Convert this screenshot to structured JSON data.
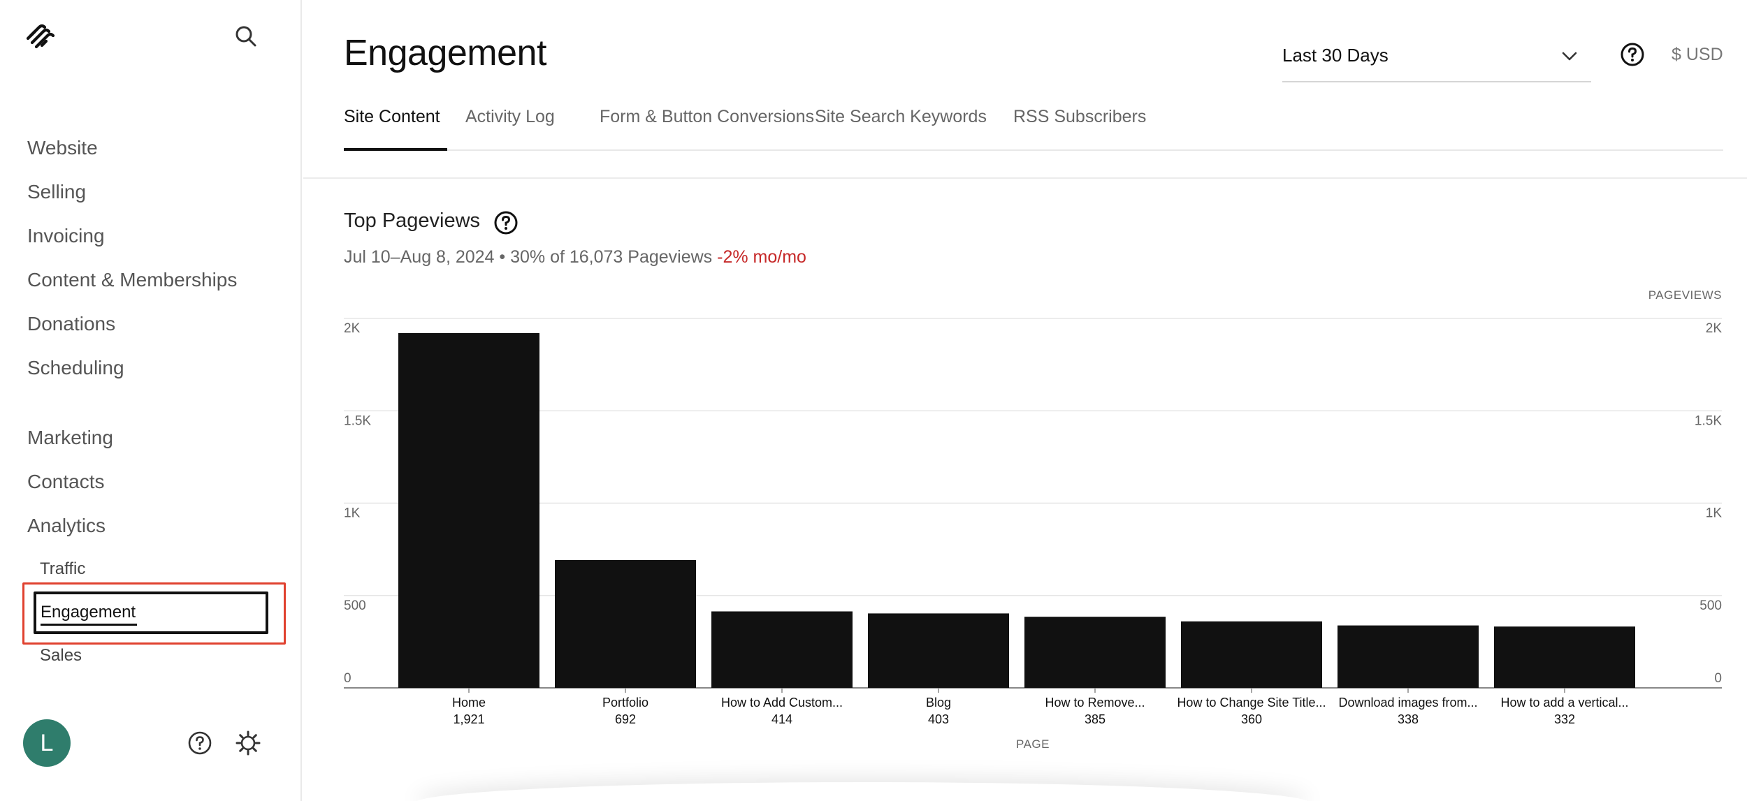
{
  "sidebar": {
    "logo_icon": "squarespace-logo-icon",
    "search_icon": "search-icon",
    "nav_primary": [
      "Website",
      "Selling",
      "Invoicing",
      "Content & Memberships",
      "Donations",
      "Scheduling"
    ],
    "nav_secondary": [
      "Marketing",
      "Contacts",
      "Analytics"
    ],
    "analytics_sub": {
      "traffic": "Traffic",
      "engagement": "Engagement",
      "sales": "Sales"
    },
    "avatar_initial": "L",
    "help_icon": "help-circle-icon",
    "settings_icon": "gear-icon"
  },
  "header": {
    "title": "Engagement",
    "date_range": "Last 30 Days",
    "currency": "$ USD"
  },
  "tabs": [
    "Site Content",
    "Activity Log",
    "Form & Button Conversions",
    "Site Search Keywords",
    "RSS Subscribers"
  ],
  "section": {
    "title": "Top Pageviews",
    "subtitle": "Jul 10–Aug 8, 2024 • 30% of 16,073 Pageviews",
    "delta": "-2% mo/mo"
  },
  "chart_data": {
    "type": "bar",
    "categories": [
      "Home",
      "Portfolio",
      "How to Add Custom...",
      "Blog",
      "How to Remove...",
      "How to Change Site Title...",
      "Download images from...",
      "How to add a vertical..."
    ],
    "values": [
      1921,
      692,
      414,
      403,
      385,
      360,
      338,
      332
    ],
    "value_labels": [
      "1,921",
      "692",
      "414",
      "403",
      "385",
      "360",
      "338",
      "332"
    ],
    "xlabel": "PAGE",
    "ylabel": "PAGEVIEWS",
    "ylim": [
      0,
      2000
    ],
    "ticks": [
      0,
      500,
      1000,
      1500,
      2000
    ],
    "tick_labels": [
      "0",
      "500",
      "1K",
      "1.5K",
      "2K"
    ],
    "grid": true,
    "bar_color": "#111111"
  },
  "colors": {
    "accent_red": "#e0412f",
    "delta_red": "#c62828",
    "avatar_green": "#2f7d6c"
  }
}
